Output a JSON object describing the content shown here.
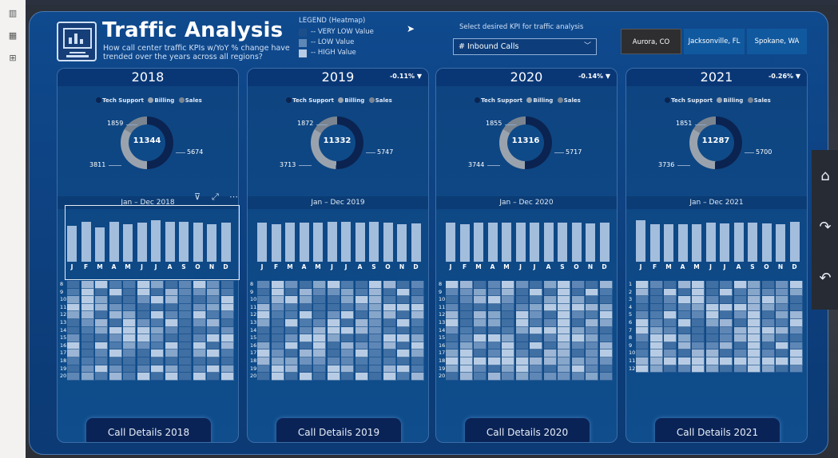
{
  "header": {
    "title": "Traffic Analysis",
    "subtitle": "How call center traffic KPIs w/YoY % change have trended over the years across all regions?"
  },
  "legend": {
    "title": "LEGEND (Heatmap)",
    "items": [
      {
        "label": "-- VERY LOW Value",
        "color": "#1c4f8a"
      },
      {
        "label": "-- LOW Value",
        "color": "#5f87b6"
      },
      {
        "label": "-- HIGH Value",
        "color": "#b7cce4"
      }
    ]
  },
  "kpi": {
    "label": "Select desired KPI for traffic analysis",
    "selected": "# Inbound Calls"
  },
  "cities": [
    "Aurora, CO",
    "Jacksonville, FL",
    "Spokane, WA"
  ],
  "donut_legend": [
    "Tech Support",
    "Billing",
    "Sales"
  ],
  "donut_colors": {
    "tech": "#0b2350",
    "billing": "#9aa3ad",
    "sales": "#7b8591"
  },
  "months": [
    "J",
    "F",
    "M",
    "A",
    "M",
    "J",
    "J",
    "A",
    "S",
    "O",
    "N",
    "D"
  ],
  "panels": [
    {
      "year": "2018",
      "yoy": "",
      "subtitle": "Jan – Dec 2018",
      "tech": 5674,
      "billing": 3811,
      "sales": 1859,
      "total": "11344",
      "bars": [
        50,
        56,
        48,
        56,
        52,
        54,
        58,
        56,
        56,
        54,
        52,
        54
      ],
      "rows": [
        "8",
        "9",
        "10",
        "11",
        "12",
        "13",
        "14",
        "15",
        "16",
        "17",
        "18",
        "19",
        "20"
      ],
      "button": "Call Details 2018"
    },
    {
      "year": "2019",
      "yoy": "-0.11% ▼",
      "subtitle": "Jan – Dec 2019",
      "tech": 5747,
      "billing": 3713,
      "sales": 1872,
      "total": "11332",
      "bars": [
        54,
        52,
        54,
        54,
        55,
        56,
        56,
        55,
        56,
        54,
        52,
        53
      ],
      "rows": [
        "8",
        "9",
        "10",
        "11",
        "12",
        "13",
        "14",
        "15",
        "16",
        "17",
        "18",
        "19",
        "20"
      ],
      "button": "Call Details 2019"
    },
    {
      "year": "2020",
      "yoy": "-0.14% ▼",
      "subtitle": "Jan – Dec 2020",
      "tech": 5717,
      "billing": 3744,
      "sales": 1855,
      "total": "11316",
      "bars": [
        54,
        52,
        55,
        54,
        55,
        55,
        55,
        54,
        55,
        54,
        53,
        54
      ],
      "rows": [
        "8",
        "9",
        "10",
        "11",
        "12",
        "13",
        "14",
        "15",
        "16",
        "17",
        "18",
        "19",
        "20"
      ],
      "button": "Call Details 2020"
    },
    {
      "year": "2021",
      "yoy": "-0.26% ▼",
      "subtitle": "Jan – Dec 2021",
      "tech": 5700,
      "billing": 3736,
      "sales": 1851,
      "total": "11287",
      "bars": [
        58,
        52,
        52,
        52,
        52,
        54,
        53,
        54,
        54,
        53,
        52,
        56
      ],
      "rows": [
        "1",
        "2",
        "3",
        "4",
        "5",
        "6",
        "7",
        "8",
        "9",
        "10",
        "11",
        "12"
      ],
      "button": "Call Details 2021"
    }
  ],
  "nav": {
    "home": "⌂",
    "forward": "↷",
    "back": "↶"
  }
}
